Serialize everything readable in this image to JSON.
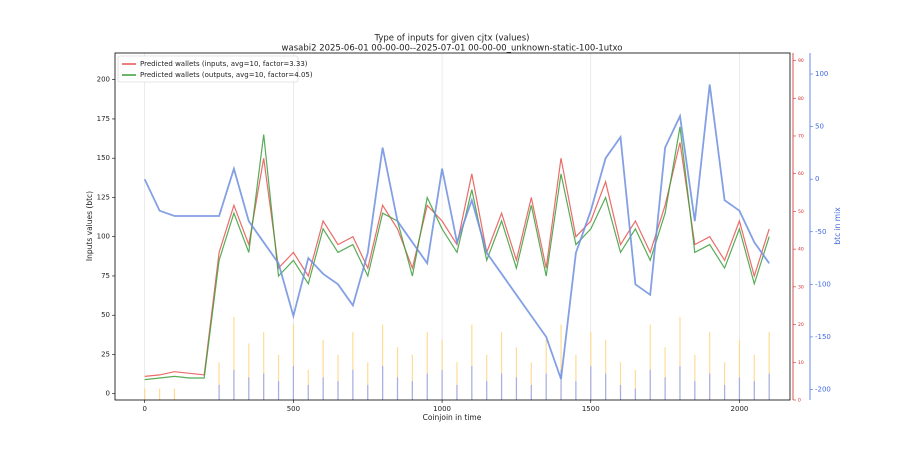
{
  "chart_data": {
    "type": "line",
    "title": "Type of inputs for given cjtx (values)",
    "subtitle": "wasabi2 2025-06-01 00-00-00--2025-07-01 00-00-00_unknown-static-100-1utxo",
    "xlabel": "Coinjoin in time",
    "ylabel": "Inputs values (btc)",
    "y3label": "btc in mix",
    "legend": "upper left",
    "grid": true,
    "xlim": [
      -100,
      2170
    ],
    "xticks": [
      0,
      500,
      1000,
      1500,
      2000
    ],
    "ylim": [
      -4,
      217
    ],
    "yticks": [
      0,
      25,
      50,
      75,
      100,
      125,
      150,
      175,
      200
    ],
    "y2lim": [
      0,
      92
    ],
    "y2ticks": [
      0,
      10,
      20,
      30,
      40,
      50,
      60,
      70,
      80,
      90
    ],
    "y2color": "#d62728",
    "y3lim": [
      -210,
      120
    ],
    "y3ticks": [
      -200,
      -150,
      -100,
      -50,
      0,
      50,
      100
    ],
    "y3color": "#4169e1",
    "x": [
      0,
      50,
      100,
      150,
      200,
      250,
      300,
      350,
      400,
      450,
      500,
      550,
      600,
      650,
      700,
      750,
      800,
      850,
      900,
      950,
      1000,
      1050,
      1100,
      1150,
      1200,
      1250,
      1300,
      1350,
      1400,
      1450,
      1500,
      1550,
      1600,
      1650,
      1700,
      1750,
      1800,
      1850,
      1900,
      1950,
      2000,
      2050,
      2100
    ],
    "series": [
      {
        "type": "bar",
        "axis": "y2",
        "color": "#ffd27a",
        "values": [
          3,
          3,
          3,
          0,
          0,
          10,
          22,
          15,
          18,
          12,
          20,
          8,
          16,
          12,
          18,
          10,
          20,
          14,
          12,
          18,
          16,
          10,
          20,
          12,
          18,
          14,
          10,
          16,
          20,
          12,
          18,
          16,
          10,
          8,
          20,
          14,
          22,
          12,
          18,
          10,
          16,
          12,
          18
        ]
      },
      {
        "type": "bar",
        "axis": "y2",
        "color": "#8fa3ff",
        "values": [
          0,
          0,
          0,
          0,
          0,
          4,
          8,
          6,
          7,
          5,
          9,
          4,
          6,
          5,
          8,
          4,
          9,
          6,
          5,
          7,
          8,
          4,
          9,
          5,
          7,
          6,
          4,
          7,
          8,
          5,
          9,
          7,
          4,
          3,
          8,
          6,
          9,
          5,
          7,
          4,
          6,
          5,
          7
        ]
      },
      {
        "type": "line",
        "axis": "y",
        "name": "Predicted wallets (inputs, avg=10, factor=3.33)",
        "color": "#e8524f",
        "values": [
          11,
          12,
          14,
          13,
          12,
          90,
          120,
          95,
          150,
          80,
          90,
          75,
          110,
          95,
          100,
          80,
          120,
          105,
          80,
          120,
          110,
          95,
          140,
          90,
          115,
          85,
          125,
          80,
          150,
          100,
          110,
          135,
          95,
          110,
          90,
          120,
          160,
          95,
          100,
          85,
          110,
          75,
          105
        ]
      },
      {
        "type": "line",
        "axis": "y",
        "name": "Predicted wallets (outputs, avg=10, factor=4.05)",
        "color": "#3a9e3a",
        "values": [
          9,
          10,
          11,
          10,
          10,
          85,
          115,
          90,
          165,
          75,
          85,
          70,
          105,
          90,
          95,
          75,
          115,
          110,
          75,
          125,
          105,
          90,
          130,
          85,
          110,
          80,
          120,
          75,
          140,
          95,
          105,
          125,
          90,
          105,
          85,
          115,
          170,
          90,
          95,
          80,
          105,
          70,
          100
        ]
      },
      {
        "type": "line",
        "axis": "y3",
        "color": "#6f8fe0",
        "values": [
          0,
          -30,
          -35,
          -35,
          -35,
          -35,
          10,
          -40,
          -60,
          -80,
          -130,
          -75,
          -90,
          -100,
          -120,
          -70,
          30,
          -40,
          -60,
          -80,
          10,
          -60,
          -20,
          -70,
          -90,
          -110,
          -130,
          -150,
          -190,
          -70,
          -30,
          20,
          40,
          -100,
          -110,
          30,
          60,
          -40,
          90,
          -20,
          -30,
          -60,
          -80
        ]
      }
    ]
  }
}
